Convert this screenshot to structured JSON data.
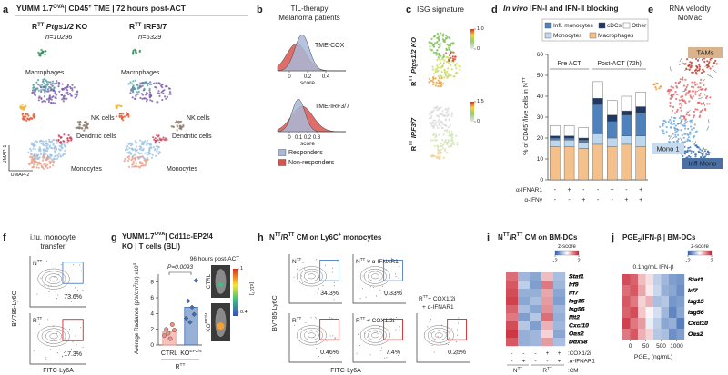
{
  "panels": {
    "a": {
      "letter": "a",
      "title": [
        "YUMM 1.7",
        "OVA",
        "| CD45",
        "+",
        " TME | 72 hours post-ACT"
      ],
      "left": {
        "heading": [
          "R",
          "TT",
          " Ptgs1/2",
          " KO"
        ],
        "n": "n=10296"
      },
      "right": {
        "heading": [
          "R",
          "TT",
          " IRF3/7"
        ],
        "n": "n=6329"
      },
      "left_clusters": [
        "Macrophages",
        "NK cells",
        "Dendritic cells",
        "Monocytes"
      ],
      "right_clusters": [
        "Macrophages",
        "NK cells",
        "Dendritic cells",
        "Monocytes"
      ],
      "axes": [
        "UMAP-1",
        "UMAP-2"
      ]
    },
    "b": {
      "letter": "b",
      "title": [
        "TIL-therapy",
        "Melanoma patients"
      ],
      "plots": [
        {
          "label": "TME-COX",
          "ticks": [
            0,
            0.2,
            0.4
          ]
        },
        {
          "label": "TME-IRF3/7",
          "ticks": [
            0,
            0.1,
            0.2,
            0.3
          ]
        }
      ],
      "xlabel": "score",
      "legend": [
        "Responders",
        "Non-responders"
      ]
    },
    "c": {
      "letter": "c",
      "title": "ISG signature",
      "rows": [
        {
          "label": [
            "R",
            "TT",
            " Ptgs1/2 KO"
          ],
          "scale": [
            {
              "value": 1,
              "label": "1.0"
            },
            0
          ]
        },
        {
          "label": [
            "R",
            "TT",
            " IRF3/7"
          ],
          "scale": [
            1.5,
            0
          ]
        }
      ]
    },
    "e": {
      "letter": "e",
      "title": [
        "RNA velocity",
        "MoMac"
      ],
      "labels": [
        "TAMs",
        "Mono 1",
        "Infl Mono"
      ]
    },
    "f": {
      "letter": "f",
      "title": [
        "i.tu. monocyte",
        "transfer"
      ],
      "plots": [
        {
          "sample": {
            "base": "N",
            "sup": "TT"
          },
          "gate": "73.6%"
        },
        {
          "sample": {
            "base": "R",
            "sup": "TT"
          },
          "gate": "17.3%"
        }
      ],
      "ylabel": "BV785-Ly6C",
      "xlabel": "FITC-Ly6A"
    },
    "h": {
      "letter": "h",
      "title": [
        "N",
        "TT",
        "/R",
        "TT",
        " CM on Ly6C",
        "+",
        " monocytes"
      ],
      "plots": [
        {
          "sample": {
            "base": "N",
            "sup": "TT"
          },
          "gate": "34.3%"
        },
        {
          "sample": {
            "base": "N",
            "sup": "TT",
            "rest": [
              " + α-IFNAR1"
            ]
          },
          "gate": "0.33%"
        },
        {
          "sample": {
            "base": "R",
            "sup": "TT"
          },
          "gate": "0.46%"
        },
        {
          "sample": {
            "base": "R",
            "sup": "TT",
            "rest": [
              " + COX1/2i"
            ]
          },
          "gate": "7.4%"
        },
        {
          "sample": {
            "base": "R",
            "sup": "TT",
            "rest": [
              "+ COX1/2i",
              "+ α-IFNAR1"
            ]
          },
          "gate": "0.25%"
        }
      ],
      "ylabel": "BV785-Ly6C",
      "xlabel": "FITC-Ly6A"
    }
  },
  "chart_data": [
    {
      "type": "bar",
      "letter": "d",
      "title": [
        "In vivo",
        " IFN-I and IFN-II blocking"
      ],
      "ylabel": [
        "% of CD45",
        "+",
        "/live cells in N",
        "TT"
      ],
      "series": [
        {
          "name": "Infl. monocytes",
          "color": "#4f81bd",
          "values": [
            1,
            1,
            1,
            14,
            8,
            10,
            11
          ]
        },
        {
          "name": "cDCs",
          "color": "#1f3864",
          "values": [
            1,
            1,
            1,
            3,
            3,
            2,
            3
          ]
        },
        {
          "name": "Other",
          "color": "#ffffff",
          "values": [
            5,
            5,
            5,
            8,
            7,
            7,
            7
          ]
        },
        {
          "name": "Monocytes",
          "color": "#bdd7ee",
          "values": [
            3,
            3,
            3,
            5,
            4,
            4,
            5
          ]
        },
        {
          "name": "Macrophages",
          "color": "#f4c08c",
          "values": [
            16,
            16,
            15,
            17,
            16,
            17,
            16
          ]
        }
      ],
      "ylim": [
        0,
        60
      ],
      "yticks": [
        0,
        10,
        20,
        30,
        40,
        50,
        60
      ],
      "groups": [
        "Pre ACT",
        "Post-ACT (72h)"
      ],
      "treatments": [
        {
          "label": "α-IFNAR1",
          "signs": [
            "-",
            "+",
            "-",
            "-",
            "+",
            "-",
            "+"
          ]
        },
        {
          "label": "α-IFNγ",
          "signs": [
            "-",
            "-",
            "+",
            "-",
            "-",
            "+",
            "+"
          ]
        }
      ]
    },
    {
      "type": "bar",
      "letter": "g",
      "title": [
        "YUMM1.7",
        "OVA",
        "| Cd11c-EP2/4",
        "KO | T cells (BLI)"
      ],
      "subtitle": "96 hours post-ACT",
      "ylabel": [
        "Average Radiance (p/s/cm",
        "2",
        "/sr) x10",
        "4"
      ],
      "categories": [
        [
          "CTRL"
        ],
        [
          "KO",
          "EP2/4"
        ]
      ],
      "colors": [
        "#f08f84",
        "#3f6fb5"
      ],
      "values": [
        1.7,
        4.8
      ],
      "points": [
        [
          1.2,
          2.0,
          1.5,
          0.8,
          2.6,
          1.9
        ],
        [
          3.4,
          5.6,
          2.9,
          4.8,
          3.9,
          8.2
        ]
      ],
      "ylim": [
        0,
        9
      ],
      "yticks": [
        0,
        2,
        4,
        6,
        8
      ],
      "pvalue": "P=0.0093",
      "group_label": [
        "R",
        "TT"
      ],
      "image_labels": [
        [
          "CTRL"
        ],
        [
          "KO",
          "EP2/4"
        ]
      ],
      "scale": [
        1,
        0.4
      ],
      "scale_unit": [
        "[x10",
        "7",
        "]"
      ]
    },
    {
      "type": "heatmap",
      "letter": "i",
      "title": [
        "N",
        "TT",
        "/R",
        "TT",
        " CM on BM-DCs"
      ],
      "rows": [
        "Stat1",
        "Irf9",
        "Irf7",
        "Isg15",
        "Isg56",
        "Ifit2",
        "Cxcl10",
        "Oas2",
        "Ddx58"
      ],
      "values": [
        [
          1.3,
          -0.9,
          -1.1,
          0.6,
          -0.8
        ],
        [
          1.5,
          -0.6,
          -1.2,
          1.2,
          -0.9
        ],
        [
          1.6,
          -1.0,
          -1.0,
          0.8,
          -1.1
        ],
        [
          1.7,
          -1.1,
          -0.8,
          0.9,
          -1.2
        ],
        [
          1.4,
          -0.8,
          -1.1,
          1.0,
          -0.9
        ],
        [
          1.2,
          -1.2,
          -0.7,
          1.3,
          -1.0
        ],
        [
          1.6,
          -0.7,
          -1.2,
          0.7,
          -0.9
        ],
        [
          1.8,
          -1.0,
          -0.9,
          0.4,
          -1.1
        ],
        [
          1.5,
          -1.0,
          -0.9,
          0.9,
          -0.8
        ]
      ],
      "zscore": {
        "label": "z-score",
        "ticks": [
          -2,
          2
        ]
      },
      "treatments": [
        {
          "label": ":COX1/2i",
          "signs": [
            "-",
            "-",
            "-",
            "+",
            "+"
          ]
        },
        {
          "label": ":α-IFNAR1",
          "signs": [
            "-",
            "+",
            "-",
            "-",
            "+"
          ]
        }
      ],
      "groups": [
        [
          "N",
          "TT"
        ],
        [
          "R",
          "TT"
        ]
      ],
      "group_suffix": ":CM"
    },
    {
      "type": "heatmap",
      "letter": "j",
      "title": [
        "PGE",
        "2",
        "/IFN-β | BM-DCs"
      ],
      "condition": "0.1ng/mL IFN-β",
      "rows": [
        "Stat1",
        "Irf7",
        "Isg15",
        "Isg56",
        "Cxcl10",
        "Oas2"
      ],
      "values": [
        [
          1.6,
          1.4,
          0.6,
          0.3,
          -0.6,
          -0.9,
          -1.2,
          -1.3
        ],
        [
          1.3,
          1.5,
          0.8,
          0.2,
          -0.5,
          -1.0,
          -1.1,
          -1.4
        ],
        [
          1.5,
          1.2,
          0.4,
          0.7,
          -0.8,
          -0.7,
          -1.3,
          -1.2
        ],
        [
          1.4,
          1.6,
          0.5,
          0.1,
          -0.4,
          -0.9,
          -1.5,
          -1.1
        ],
        [
          1.7,
          1.2,
          0.9,
          -0.2,
          -0.6,
          -1.1,
          -1.0,
          -1.6
        ],
        [
          1.2,
          1.5,
          0.7,
          0.4,
          -0.7,
          -0.8,
          -1.4,
          -1.2
        ]
      ],
      "doses": [
        0,
        50,
        500,
        1000
      ],
      "xlabel": [
        "PGE",
        "2",
        " (ng/mL)"
      ],
      "zscore": {
        "label": "z-score",
        "ticks": [
          -2,
          2
        ]
      }
    }
  ]
}
